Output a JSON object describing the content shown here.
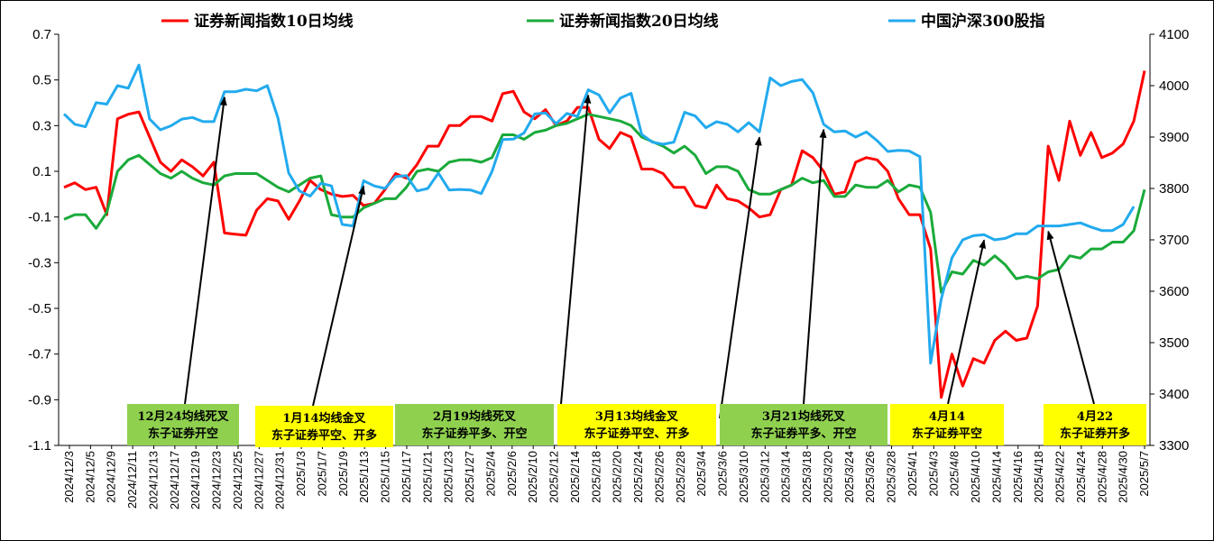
{
  "chart_data": {
    "type": "line",
    "title": "",
    "legend_position": "top",
    "grid": false,
    "y_left": {
      "min": -1.1,
      "max": 0.7,
      "ticks": [
        "0.7",
        "0.5",
        "0.3",
        "0.1",
        "-0.1",
        "-0.3",
        "-0.5",
        "-0.7",
        "-0.9",
        "-1.1"
      ]
    },
    "y_right": {
      "min": 3300,
      "max": 4100,
      "ticks": [
        "4100",
        "4000",
        "3900",
        "3800",
        "3700",
        "3600",
        "3500",
        "3400",
        "3300"
      ]
    },
    "x_tick_labels": [
      "2024/12/3",
      "2024/12/5",
      "2024/12/9",
      "2024/12/11",
      "2024/12/13",
      "2024/12/17",
      "2024/12/19",
      "2024/12/23",
      "2024/12/25",
      "2024/12/27",
      "2024/12/31",
      "2025/1/3",
      "2025/1/7",
      "2025/1/9",
      "2025/1/13",
      "2025/1/15",
      "2025/1/17",
      "2025/1/21",
      "2025/1/23",
      "2025/1/27",
      "2025/2/4",
      "2025/2/6",
      "2025/2/10",
      "2025/2/12",
      "2025/2/14",
      "2025/2/18",
      "2025/2/20",
      "2025/2/24",
      "2025/2/26",
      "2025/2/28",
      "2025/3/4",
      "2025/3/6",
      "2025/3/10",
      "2025/3/12",
      "2025/3/14",
      "2025/3/18",
      "2025/3/20",
      "2025/3/24",
      "2025/3/26",
      "2025/3/28",
      "2025/4/1",
      "2025/4/3",
      "2025/4/8",
      "2025/4/10",
      "2025/4/14",
      "2025/4/16",
      "2025/4/18",
      "2025/4/22",
      "2025/4/24",
      "2025/4/28",
      "2025/4/30",
      "2025/5/7"
    ],
    "series": [
      {
        "name": "证券新闻指数10日均线",
        "color": "#ff0000",
        "axis": "left",
        "values": [
          0.03,
          0.05,
          0.02,
          0.03,
          -0.09,
          0.33,
          0.35,
          0.36,
          0.25,
          0.14,
          0.1,
          0.15,
          0.12,
          0.08,
          0.14,
          -0.17,
          -0.175,
          -0.18,
          -0.07,
          -0.02,
          -0.03,
          -0.11,
          -0.03,
          0.06,
          0.02,
          0.0,
          -0.01,
          -0.005,
          -0.05,
          -0.04,
          0.02,
          0.09,
          0.07,
          0.13,
          0.21,
          0.21,
          0.3,
          0.3,
          0.34,
          0.34,
          0.32,
          0.44,
          0.45,
          0.36,
          0.33,
          0.37,
          0.3,
          0.32,
          0.38,
          0.38,
          0.24,
          0.2,
          0.27,
          0.25,
          0.11,
          0.11,
          0.09,
          0.03,
          0.03,
          -0.05,
          -0.06,
          0.04,
          -0.02,
          -0.03,
          -0.06,
          -0.1,
          -0.09,
          0.02,
          0.04,
          0.19,
          0.16,
          0.1,
          0.0,
          0.01,
          0.14,
          0.16,
          0.15,
          0.1,
          -0.02,
          -0.09,
          -0.09,
          -0.24,
          -0.89,
          -0.7,
          -0.84,
          -0.72,
          -0.74,
          -0.64,
          -0.6,
          -0.64,
          -0.63,
          -0.49,
          0.21,
          0.06,
          0.32,
          0.17,
          0.27,
          0.16,
          0.18,
          0.22,
          0.32,
          0.54
        ]
      },
      {
        "name": "证券新闻指数20日均线",
        "color": "#1aaa3a",
        "axis": "left",
        "values": [
          -0.11,
          -0.09,
          -0.09,
          -0.15,
          -0.08,
          0.1,
          0.15,
          0.17,
          0.13,
          0.09,
          0.07,
          0.1,
          0.07,
          0.05,
          0.04,
          0.08,
          0.09,
          0.09,
          0.09,
          0.06,
          0.03,
          0.01,
          0.04,
          0.07,
          0.08,
          -0.09,
          -0.1,
          -0.1,
          -0.06,
          -0.04,
          -0.02,
          -0.02,
          0.03,
          0.1,
          0.11,
          0.1,
          0.14,
          0.15,
          0.15,
          0.14,
          0.16,
          0.26,
          0.26,
          0.24,
          0.27,
          0.28,
          0.3,
          0.31,
          0.33,
          0.35,
          0.34,
          0.33,
          0.32,
          0.3,
          0.25,
          0.23,
          0.21,
          0.18,
          0.21,
          0.17,
          0.09,
          0.12,
          0.12,
          0.1,
          0.02,
          0.0,
          0.0,
          0.02,
          0.04,
          0.07,
          0.05,
          0.06,
          -0.01,
          -0.01,
          0.04,
          0.03,
          0.03,
          0.06,
          0.01,
          0.04,
          0.03,
          -0.08,
          -0.43,
          -0.34,
          -0.35,
          -0.29,
          -0.31,
          -0.27,
          -0.31,
          -0.37,
          -0.36,
          -0.37,
          -0.34,
          -0.33,
          -0.27,
          -0.28,
          -0.24,
          -0.24,
          -0.21,
          -0.21,
          -0.16,
          0.02
        ]
      },
      {
        "name": "中国沪深300股指",
        "color": "#22aaee",
        "axis": "right",
        "values": [
          3945,
          3925,
          3920,
          3967,
          3964,
          4000,
          3995,
          4040,
          3935,
          3914,
          3922,
          3935,
          3938,
          3930,
          3930,
          3988,
          3988,
          3993,
          3990,
          4000,
          3937,
          3830,
          3795,
          3785,
          3810,
          3805,
          3730,
          3727,
          3815,
          3805,
          3800,
          3823,
          3825,
          3795,
          3800,
          3830,
          3797,
          3798,
          3797,
          3790,
          3833,
          3895,
          3896,
          3908,
          3945,
          3947,
          3926,
          3946,
          3940,
          3992,
          3982,
          3947,
          3976,
          3985,
          3905,
          3890,
          3886,
          3890,
          3948,
          3941,
          3918,
          3930,
          3925,
          3910,
          3928,
          3910,
          4015,
          4000,
          4008,
          4012,
          3986,
          3925,
          3910,
          3912,
          3900,
          3910,
          3893,
          3872,
          3874,
          3873,
          3862,
          3460,
          3585,
          3665,
          3700,
          3708,
          3710,
          3700,
          3703,
          3712,
          3712,
          3727,
          3727,
          3727,
          3730,
          3733,
          3725,
          3718,
          3718,
          3730,
          3765
        ]
      }
    ],
    "annotations": [
      {
        "lines": [
          "12月24均线死叉",
          "东子证券开空"
        ],
        "bg": "#8fd14f",
        "target_index": 15,
        "target_series": 2
      },
      {
        "lines": [
          "1月14均线金叉",
          "东子证券平空、开多"
        ],
        "bg": "#ffff00",
        "target_index": 28,
        "target_series": 2
      },
      {
        "lines": [
          "2月19均线死叉",
          "东子证券平多、开空"
        ],
        "bg": "#8fd14f",
        "target_index": 49,
        "target_series": 2
      },
      {
        "lines": [
          "3月13均线金叉",
          "东子证券平空、开多"
        ],
        "bg": "#ffff00",
        "target_index": 65,
        "target_series": 2
      },
      {
        "lines": [
          "3月21均线死叉",
          "东子证券平多、开空"
        ],
        "bg": "#8fd14f",
        "target_index": 71,
        "target_series": 2
      },
      {
        "lines": [
          "4月14",
          "东子证券平空"
        ],
        "bg": "#ffff00",
        "target_index": 86,
        "target_series": 2
      },
      {
        "lines": [
          "4月22",
          "东子证券开多"
        ],
        "bg": "#ffff00",
        "target_index": 92,
        "target_series": 2
      }
    ]
  }
}
